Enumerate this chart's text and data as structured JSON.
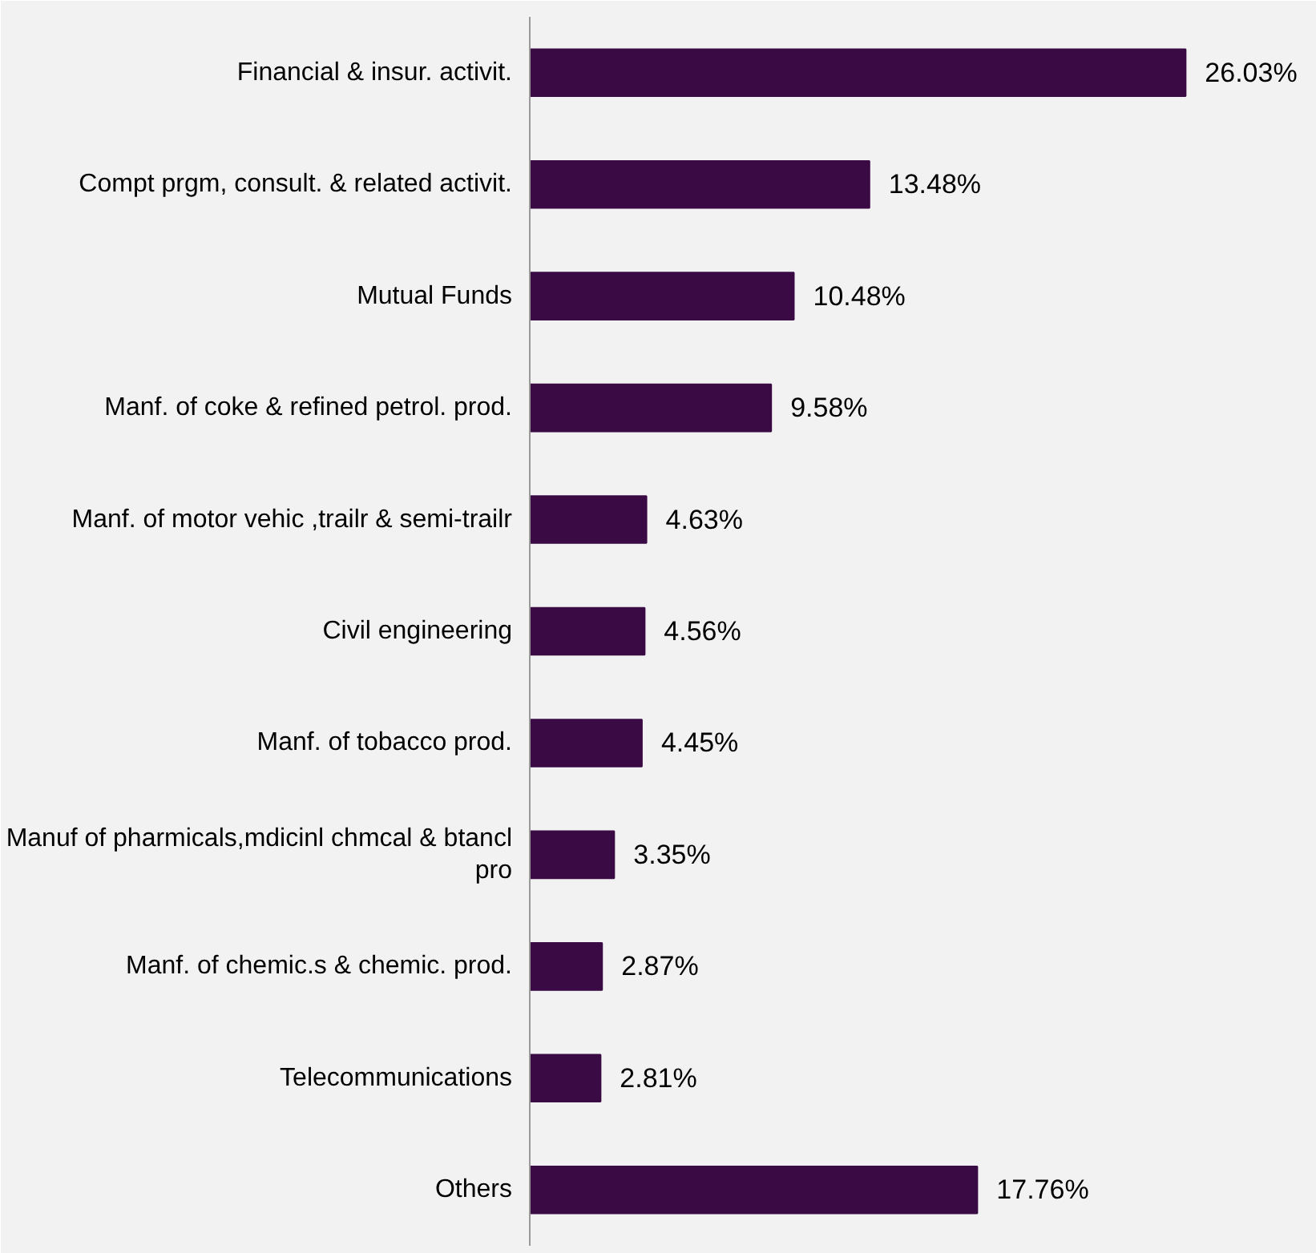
{
  "chart_data": {
    "type": "bar",
    "orientation": "horizontal",
    "categories": [
      "Financial & insur. activit.",
      "Compt prgm, consult. & related activit.",
      "Mutual Funds",
      "Manf. of coke & refined petrol. prod.",
      "Manf. of motor vehic ,trailr & semi-trailr",
      "Civil engineering",
      "Manf. of tobacco prod.",
      "Manuf of pharmicals,mdicinl chmcal & btancl pro",
      "Manf. of chemic.s & chemic. prod.",
      "Telecommunications",
      "Others"
    ],
    "values": [
      26.03,
      13.48,
      10.48,
      9.58,
      4.63,
      4.56,
      4.45,
      3.35,
      2.87,
      2.81,
      17.76
    ],
    "value_labels": [
      "26.03%",
      "13.48%",
      "10.48%",
      "9.58%",
      "4.63%",
      "4.56%",
      "4.45%",
      "3.35%",
      "2.87%",
      "2.81%",
      "17.76%"
    ],
    "color": "#3a0a44",
    "grid": false
  }
}
